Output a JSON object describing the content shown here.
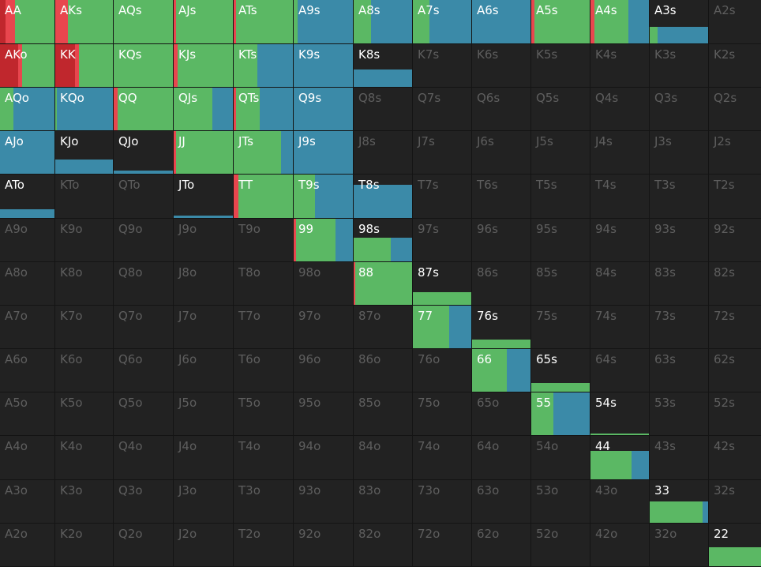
{
  "colors": {
    "raise": "#e8464e",
    "raise_dark": "#c0272d",
    "call": "#5bb864",
    "fold": "#3b8aa8",
    "cell_bg": "#222222",
    "inactive_text": "#5e5e5e",
    "active_text": "#ffffff"
  },
  "hands": [
    [
      "AA",
      "AKs",
      "AQs",
      "AJs",
      "ATs",
      "A9s",
      "A8s",
      "A7s",
      "A6s",
      "A5s",
      "A4s",
      "A3s",
      "A2s"
    ],
    [
      "AKo",
      "KK",
      "KQs",
      "KJs",
      "KTs",
      "K9s",
      "K8s",
      "K7s",
      "K6s",
      "K5s",
      "K4s",
      "K3s",
      "K2s"
    ],
    [
      "AQo",
      "KQo",
      "QQ",
      "QJs",
      "QTs",
      "Q9s",
      "Q8s",
      "Q7s",
      "Q6s",
      "Q5s",
      "Q4s",
      "Q3s",
      "Q2s"
    ],
    [
      "AJo",
      "KJo",
      "QJo",
      "JJ",
      "JTs",
      "J9s",
      "J8s",
      "J7s",
      "J6s",
      "J5s",
      "J4s",
      "J3s",
      "J2s"
    ],
    [
      "ATo",
      "KTo",
      "QTo",
      "JTo",
      "TT",
      "T9s",
      "T8s",
      "T7s",
      "T6s",
      "T5s",
      "T4s",
      "T3s",
      "T2s"
    ],
    [
      "A9o",
      "K9o",
      "Q9o",
      "J9o",
      "T9o",
      "99",
      "98s",
      "97s",
      "96s",
      "95s",
      "94s",
      "93s",
      "92s"
    ],
    [
      "A8o",
      "K8o",
      "Q8o",
      "J8o",
      "T8o",
      "98o",
      "88",
      "87s",
      "86s",
      "85s",
      "84s",
      "83s",
      "82s"
    ],
    [
      "A7o",
      "K7o",
      "Q7o",
      "J7o",
      "T7o",
      "97o",
      "87o",
      "77",
      "76s",
      "75s",
      "74s",
      "73s",
      "72s"
    ],
    [
      "A6o",
      "K6o",
      "Q6o",
      "J6o",
      "T6o",
      "96o",
      "86o",
      "76o",
      "66",
      "65s",
      "64s",
      "63s",
      "62s"
    ],
    [
      "A5o",
      "K5o",
      "Q5o",
      "J5o",
      "T5o",
      "95o",
      "85o",
      "75o",
      "65o",
      "55",
      "54s",
      "53s",
      "52s"
    ],
    [
      "A4o",
      "K4o",
      "Q4o",
      "J4o",
      "T4o",
      "94o",
      "84o",
      "74o",
      "64o",
      "54o",
      "44",
      "43s",
      "42s"
    ],
    [
      "A3o",
      "K3o",
      "Q3o",
      "J3o",
      "T3o",
      "93o",
      "83o",
      "73o",
      "63o",
      "53o",
      "43o",
      "33",
      "32s"
    ],
    [
      "A2o",
      "K2o",
      "Q2o",
      "J2o",
      "T2o",
      "92o",
      "82o",
      "72o",
      "62o",
      "52o",
      "42o",
      "32o",
      "22"
    ]
  ],
  "strategies": {
    "AA": {
      "freq": 1.0,
      "raise_dark": 0.1,
      "raise": 0.18,
      "call": 0.72,
      "fold": 0.0
    },
    "AKs": {
      "freq": 1.0,
      "raise": 0.22,
      "call": 0.78,
      "fold": 0.0
    },
    "AQs": {
      "freq": 1.0,
      "call": 1.0
    },
    "AJs": {
      "freq": 1.0,
      "raise": 0.04,
      "call": 0.96
    },
    "ATs": {
      "freq": 1.0,
      "raise": 0.04,
      "call": 0.96
    },
    "A9s": {
      "freq": 1.0,
      "call": 0.07,
      "fold": 0.93
    },
    "A8s": {
      "freq": 1.0,
      "call": 0.3,
      "fold": 0.7
    },
    "A7s": {
      "freq": 1.0,
      "call": 0.28,
      "fold": 0.72
    },
    "A6s": {
      "freq": 1.0,
      "fold": 1.0
    },
    "A5s": {
      "freq": 1.0,
      "raise": 0.05,
      "call": 0.95
    },
    "A4s": {
      "freq": 1.0,
      "raise": 0.07,
      "call": 0.58,
      "fold": 0.35
    },
    "A3s": {
      "freq": 0.38,
      "call": 0.13,
      "fold": 0.87
    },
    "AKo": {
      "freq": 1.0,
      "raise_dark": 0.34,
      "raise": 0.06,
      "call": 0.6
    },
    "KK": {
      "freq": 1.0,
      "raise_dark": 0.34,
      "raise": 0.07,
      "call": 0.59
    },
    "KQs": {
      "freq": 1.0,
      "call": 1.0
    },
    "KJs": {
      "freq": 1.0,
      "raise": 0.06,
      "call": 0.94
    },
    "KTs": {
      "freq": 1.0,
      "call": 0.4,
      "fold": 0.6
    },
    "K9s": {
      "freq": 1.0,
      "fold": 1.0
    },
    "K8s": {
      "freq": 0.4,
      "fold": 1.0
    },
    "AQo": {
      "freq": 1.0,
      "call": 0.25,
      "fold": 0.75
    },
    "KQo": {
      "freq": 1.0,
      "call": 0.03,
      "fold": 0.97
    },
    "QQ": {
      "freq": 1.0,
      "raise": 0.07,
      "call": 0.93
    },
    "QJs": {
      "freq": 1.0,
      "call": 0.65,
      "fold": 0.35
    },
    "QTs": {
      "freq": 1.0,
      "raise": 0.04,
      "call": 0.4,
      "fold": 0.56
    },
    "Q9s": {
      "freq": 1.0,
      "fold": 1.0
    },
    "AJo": {
      "freq": 1.0,
      "fold": 1.0
    },
    "KJo": {
      "freq": 0.33,
      "fold": 1.0
    },
    "QJo": {
      "freq": 0.08,
      "fold": 1.0
    },
    "JJ": {
      "freq": 1.0,
      "raise": 0.04,
      "call": 0.96
    },
    "JTs": {
      "freq": 1.0,
      "call": 0.8,
      "fold": 0.2
    },
    "J9s": {
      "freq": 1.0,
      "fold": 1.0
    },
    "ATo": {
      "freq": 0.2,
      "fold": 1.0
    },
    "JTo": {
      "freq": 0.05,
      "fold": 1.0
    },
    "TT": {
      "freq": 1.0,
      "raise": 0.08,
      "call": 0.92
    },
    "T9s": {
      "freq": 1.0,
      "call": 0.36,
      "fold": 0.64
    },
    "T8s": {
      "freq": 0.76,
      "fold": 1.0
    },
    "99": {
      "freq": 1.0,
      "raise": 0.04,
      "call": 0.66,
      "fold": 0.3
    },
    "98s": {
      "freq": 0.55,
      "call": 0.64,
      "fold": 0.36
    },
    "88": {
      "freq": 1.0,
      "raise": 0.03,
      "call": 0.97
    },
    "87s": {
      "freq": 0.3,
      "call": 1.0
    },
    "77": {
      "freq": 1.0,
      "call": 0.62,
      "fold": 0.38
    },
    "76s": {
      "freq": 0.21,
      "call": 1.0
    },
    "66": {
      "freq": 1.0,
      "call": 0.6,
      "fold": 0.4
    },
    "65s": {
      "freq": 0.2,
      "call": 1.0
    },
    "55": {
      "freq": 1.0,
      "call": 0.38,
      "fold": 0.62
    },
    "54s": {
      "freq": 0.03,
      "call": 1.0
    },
    "44": {
      "freq": 0.66,
      "call": 0.7,
      "fold": 0.3
    },
    "33": {
      "freq": 0.5,
      "call": 0.91,
      "fold": 0.09
    },
    "22": {
      "freq": 0.45,
      "call": 1.0
    }
  }
}
